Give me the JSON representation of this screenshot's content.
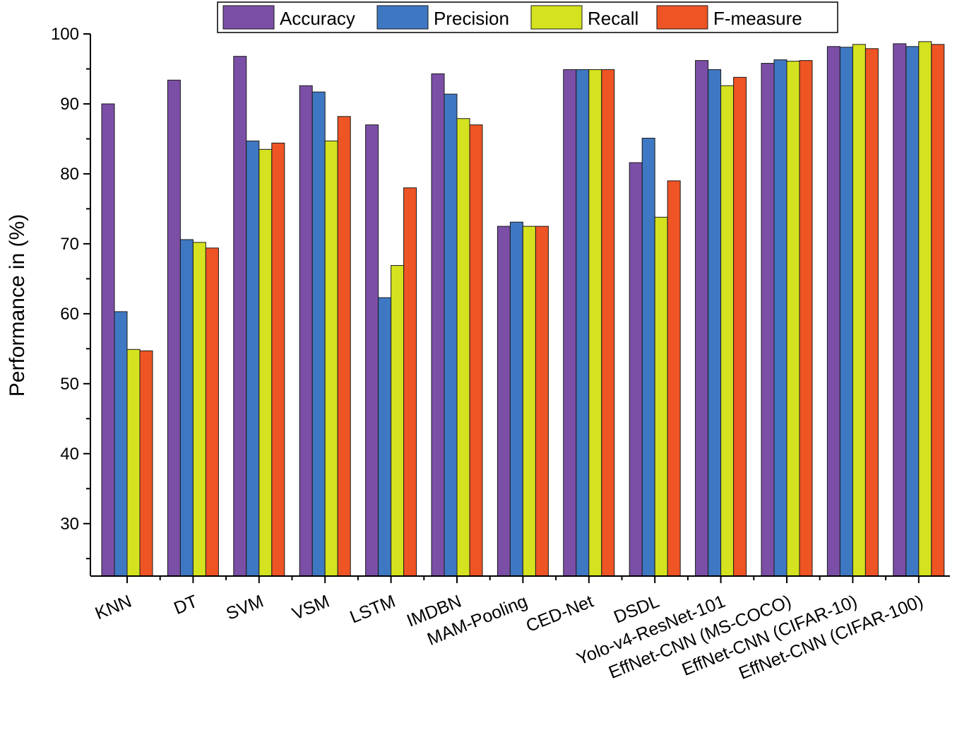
{
  "chart_data": {
    "type": "bar",
    "title": "",
    "xlabel": "",
    "ylabel": "Performance in (%)",
    "ylim": [
      22.5,
      100
    ],
    "yticks": [
      30,
      40,
      50,
      60,
      70,
      80,
      90,
      100
    ],
    "grid": false,
    "legend_position": "top-center",
    "categories": [
      "KNN",
      "DT",
      "SVM",
      "VSM",
      "LSTM",
      "IMDBN",
      "MAM-Pooling",
      "CED-Net",
      "DSDL",
      "Yolo-v4-ResNet-101",
      "EffNet-CNN (MS-COCO)",
      "EffNet-CNN (CIFAR-10)",
      "EffNet-CNN (CIFAR-100)"
    ],
    "series": [
      {
        "name": "Accuracy",
        "color": "#7b4fa6",
        "values": [
          90.0,
          93.4,
          96.8,
          92.6,
          87.0,
          94.3,
          72.5,
          94.9,
          81.6,
          96.2,
          95.8,
          98.2,
          98.6
        ]
      },
      {
        "name": "Precision",
        "color": "#3f78c2",
        "values": [
          60.3,
          70.6,
          84.7,
          91.7,
          62.3,
          91.4,
          73.1,
          94.9,
          85.1,
          94.9,
          96.3,
          98.1,
          98.2
        ]
      },
      {
        "name": "Recall",
        "color": "#d4e21f",
        "values": [
          54.9,
          70.2,
          83.5,
          84.7,
          66.9,
          87.9,
          72.5,
          94.9,
          73.8,
          92.6,
          96.1,
          98.5,
          98.9
        ]
      },
      {
        "name": "F-measure",
        "color": "#ee5424",
        "values": [
          54.7,
          69.4,
          84.4,
          88.2,
          78.0,
          87.0,
          72.5,
          94.9,
          79.0,
          93.8,
          96.2,
          97.9,
          98.5
        ]
      }
    ]
  }
}
